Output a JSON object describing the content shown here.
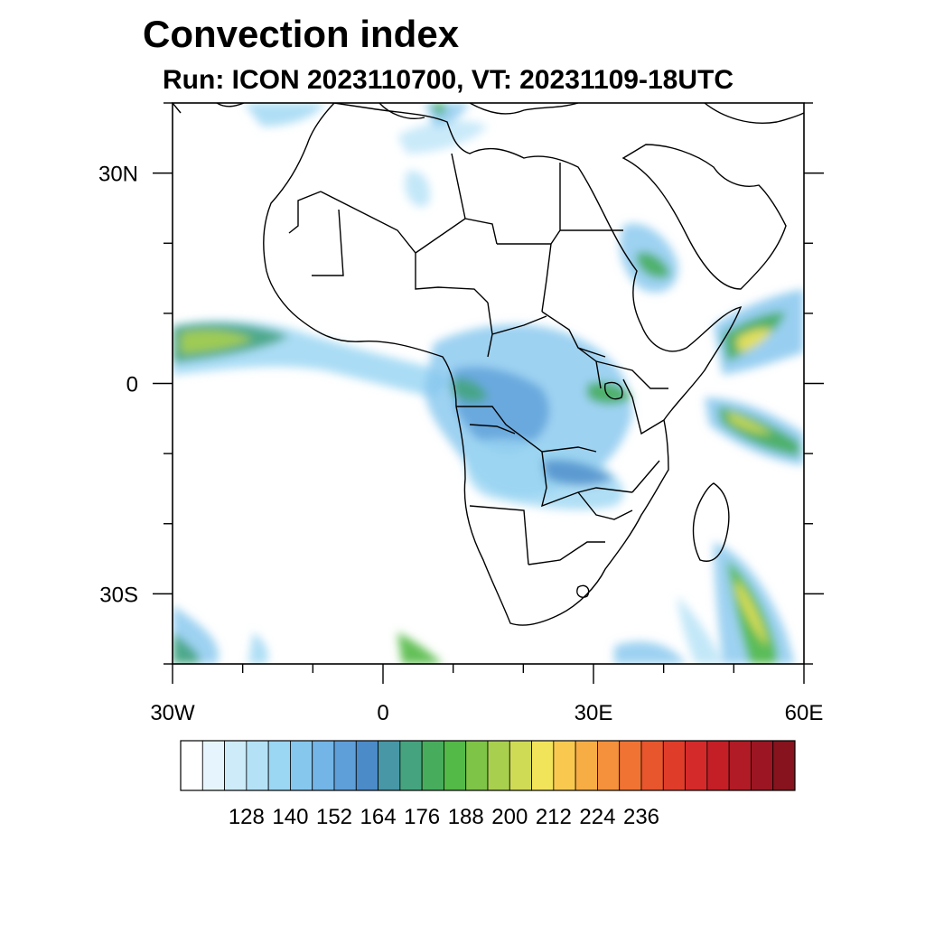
{
  "title": "Convection index",
  "subtitle": "Run: ICON 2023110700,  VT: 20231109-18UTC",
  "map": {
    "lon_range": [
      -30,
      60
    ],
    "lat_range": [
      -40,
      40
    ],
    "lat_labels": [
      {
        "lat": 30,
        "label": "30N"
      },
      {
        "lat": 0,
        "label": "0"
      },
      {
        "lat": -30,
        "label": "30S"
      }
    ],
    "lon_labels": [
      {
        "lon": -30,
        "label": "30W"
      },
      {
        "lon": 0,
        "label": "0"
      },
      {
        "lon": 30,
        "label": "30E"
      },
      {
        "lon": 60,
        "label": "60E"
      }
    ]
  },
  "colorbar": {
    "colors": [
      "#ffffff",
      "#e6f5fd",
      "#cdebf9",
      "#b4e1f6",
      "#9bd6f3",
      "#86c7ee",
      "#73b5e6",
      "#5e9fd9",
      "#4b8bc8",
      "#4797a6",
      "#45a47f",
      "#47ad5d",
      "#53b947",
      "#7dc447",
      "#a9cf4f",
      "#d0db55",
      "#f2e45a",
      "#f9c94f",
      "#f7ad44",
      "#f5903c",
      "#f07333",
      "#e8562d",
      "#df3d2a",
      "#d42a2a",
      "#c41f27",
      "#b11b25",
      "#9b1622",
      "#86131d"
    ],
    "labels": [
      "128",
      "140",
      "152",
      "164",
      "176",
      "188",
      "200",
      "212",
      "224",
      "236"
    ]
  }
}
